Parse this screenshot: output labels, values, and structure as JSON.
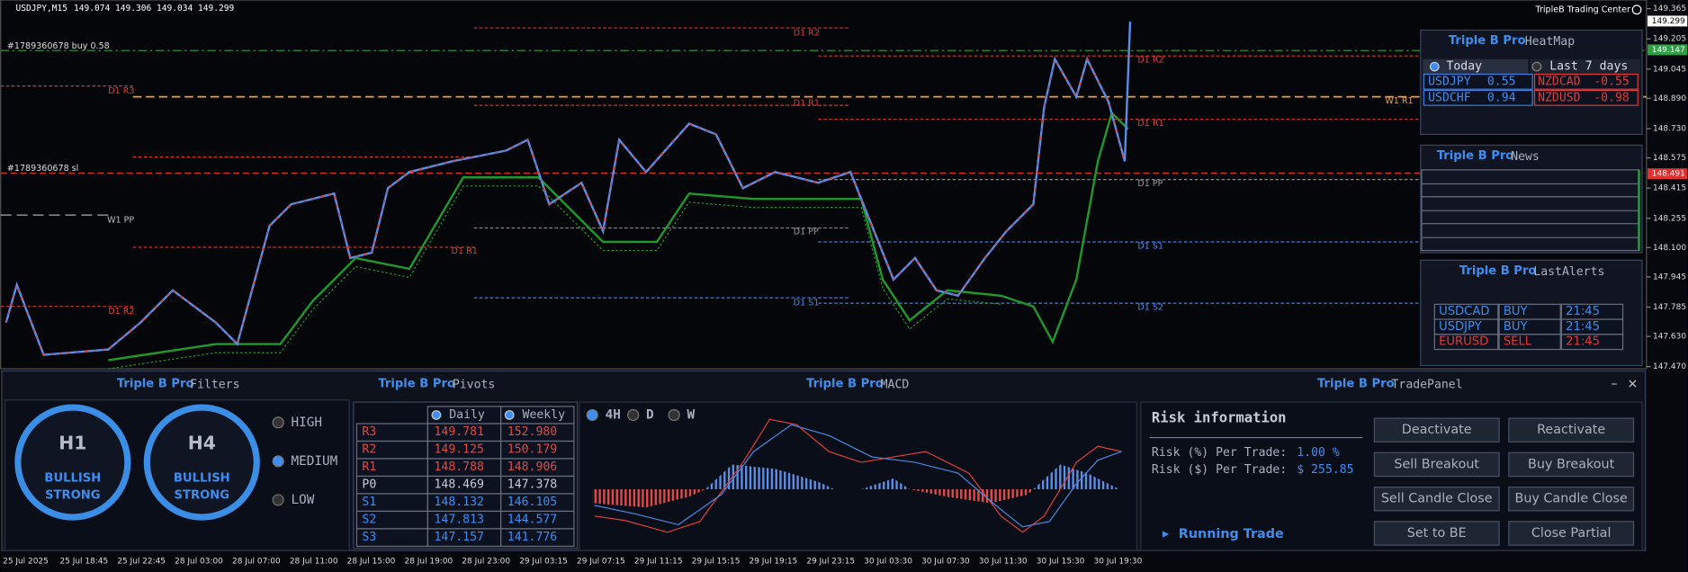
{
  "header": {
    "symbol": "USDJPY,M15",
    "ohlc": "149.074 149.306 149.034 149.299",
    "brand": "TripleB Trading Center"
  },
  "chart": {
    "level_labels": [
      "D1 R2",
      "D1 R3",
      "D1 R1",
      "W1 R1",
      "D1 R2",
      "D1 R1",
      "#1789360678 buy 0.58",
      "#1789360678 sl",
      "D1 PP",
      "W1 PP",
      "D1 PP",
      "D1 R1",
      "D1 S1",
      "D1 R2",
      "D1 S1",
      "D1 S2"
    ],
    "price_ticks": [
      "149.365",
      "149.205",
      "149.045",
      "148.890",
      "148.730",
      "148.575",
      "148.415",
      "148.255",
      "148.100",
      "147.945",
      "147.785",
      "147.630",
      "147.470"
    ],
    "price_markers": [
      "149.299",
      "149.147",
      "148.491"
    ],
    "time_labels": [
      "25 Jul 2025",
      "25 Jul 18:45",
      "25 Jul 22:45",
      "28 Jul 03:00",
      "28 Jul 07:00",
      "28 Jul 11:00",
      "28 Jul 15:00",
      "28 Jul 19:00",
      "28 Jul 23:00",
      "29 Jul 03:15",
      "29 Jul 07:15",
      "29 Jul 11:15",
      "29 Jul 15:15",
      "29 Jul 19:15",
      "29 Jul 23:15",
      "30 Jul 03:30",
      "30 Jul 07:30",
      "30 Jul 11:30",
      "30 Jul 15:30",
      "30 Jul 19:30"
    ]
  },
  "heatmap": {
    "brand": "Triple B Pro",
    "title": "HeatMap",
    "tabs": [
      "Today",
      "Last 7 days"
    ],
    "cells": [
      [
        "USDJPY",
        "0.55"
      ],
      [
        "USDCHF",
        "0.94"
      ],
      [
        "NZDCAD",
        "-0.55"
      ],
      [
        "NZDUSD",
        "-0.98"
      ]
    ]
  },
  "news": {
    "brand": "Triple B Pro",
    "title": "News"
  },
  "alerts": {
    "brand": "Triple B Pro",
    "title": "LastAlerts",
    "rows": [
      [
        "USDCAD",
        "BUY",
        "21:45"
      ],
      [
        "USDJPY",
        "BUY",
        "21:45"
      ],
      [
        "EURUSD",
        "SELL",
        "21:45"
      ]
    ]
  },
  "filters": {
    "brand": "Triple B Pro",
    "title": "Filters",
    "gauges": [
      [
        "H1",
        "BULLISH",
        "STRONG"
      ],
      [
        "H4",
        "BULLISH",
        "STRONG"
      ]
    ],
    "levels": [
      "HIGH",
      "MEDIUM",
      "LOW"
    ]
  },
  "pivots": {
    "brand": "Triple B Pro",
    "title": "Pivots",
    "columns": [
      "Daily",
      "Weekly"
    ],
    "rows": [
      [
        "R3",
        "149.781",
        "152.980"
      ],
      [
        "R2",
        "149.125",
        "150.179"
      ],
      [
        "R1",
        "148.788",
        "148.906"
      ],
      [
        "P0",
        "148.469",
        "147.378"
      ],
      [
        "S1",
        "148.132",
        "146.105"
      ],
      [
        "S2",
        "147.813",
        "144.577"
      ],
      [
        "S3",
        "147.157",
        "141.776"
      ]
    ]
  },
  "macd": {
    "brand": "Triple B Pro",
    "title": "MACD",
    "tabs": [
      "4H",
      "D",
      "W"
    ]
  },
  "tradepanel": {
    "brand": "Triple B Pro",
    "title": "TradePanel",
    "risk_title": "Risk information",
    "risk_pct_label": "Risk (%) Per Trade:",
    "risk_pct": "1.00 %",
    "risk_usd_label": "Risk ($) Per Trade:",
    "risk_usd": "$ 255.85",
    "buttons": [
      "Deactivate",
      "Reactivate",
      "Sell Breakout",
      "Buy Breakout",
      "Sell Candle Close",
      "Buy Candle Close",
      "Set to BE",
      "Close Partial"
    ],
    "running": "Running Trade"
  }
}
